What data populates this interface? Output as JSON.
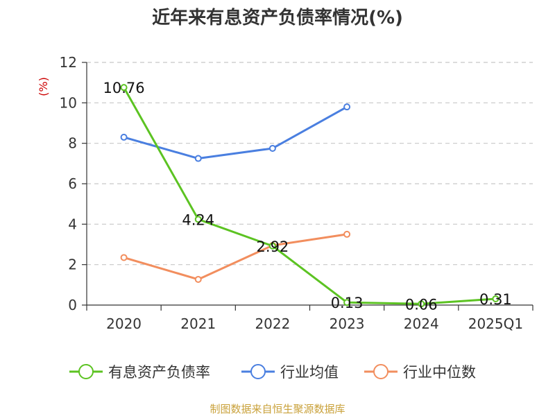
{
  "chart_data": {
    "type": "line",
    "title": "近年来有息资产负债率情况(%)",
    "ylabel": "(%)",
    "xlabel": "",
    "categories": [
      "2020",
      "2021",
      "2022",
      "2023",
      "2024",
      "2025Q1"
    ],
    "ylim": [
      0,
      12
    ],
    "yticks": [
      0,
      2,
      4,
      6,
      8,
      10,
      12
    ],
    "grid": true,
    "legend_position": "bottom",
    "series": [
      {
        "name": "有息资产负债率",
        "color": "#5cc322",
        "values": [
          10.76,
          4.24,
          2.92,
          0.13,
          0.06,
          0.31
        ],
        "labels": [
          "10.76",
          "4.24",
          "2.92",
          "0.13",
          "0.06",
          "0.31"
        ]
      },
      {
        "name": "行业均值",
        "color": "#4a7fe0",
        "values": [
          8.3,
          7.25,
          7.75,
          9.8,
          null,
          null
        ]
      },
      {
        "name": "行业中位数",
        "color": "#f28e5e",
        "values": [
          2.35,
          1.27,
          2.95,
          3.5,
          null,
          null
        ]
      }
    ],
    "source": "制图数据来自恒生聚源数据库",
    "source_color": "#c9a13a",
    "unit_color": "#cc0000"
  }
}
